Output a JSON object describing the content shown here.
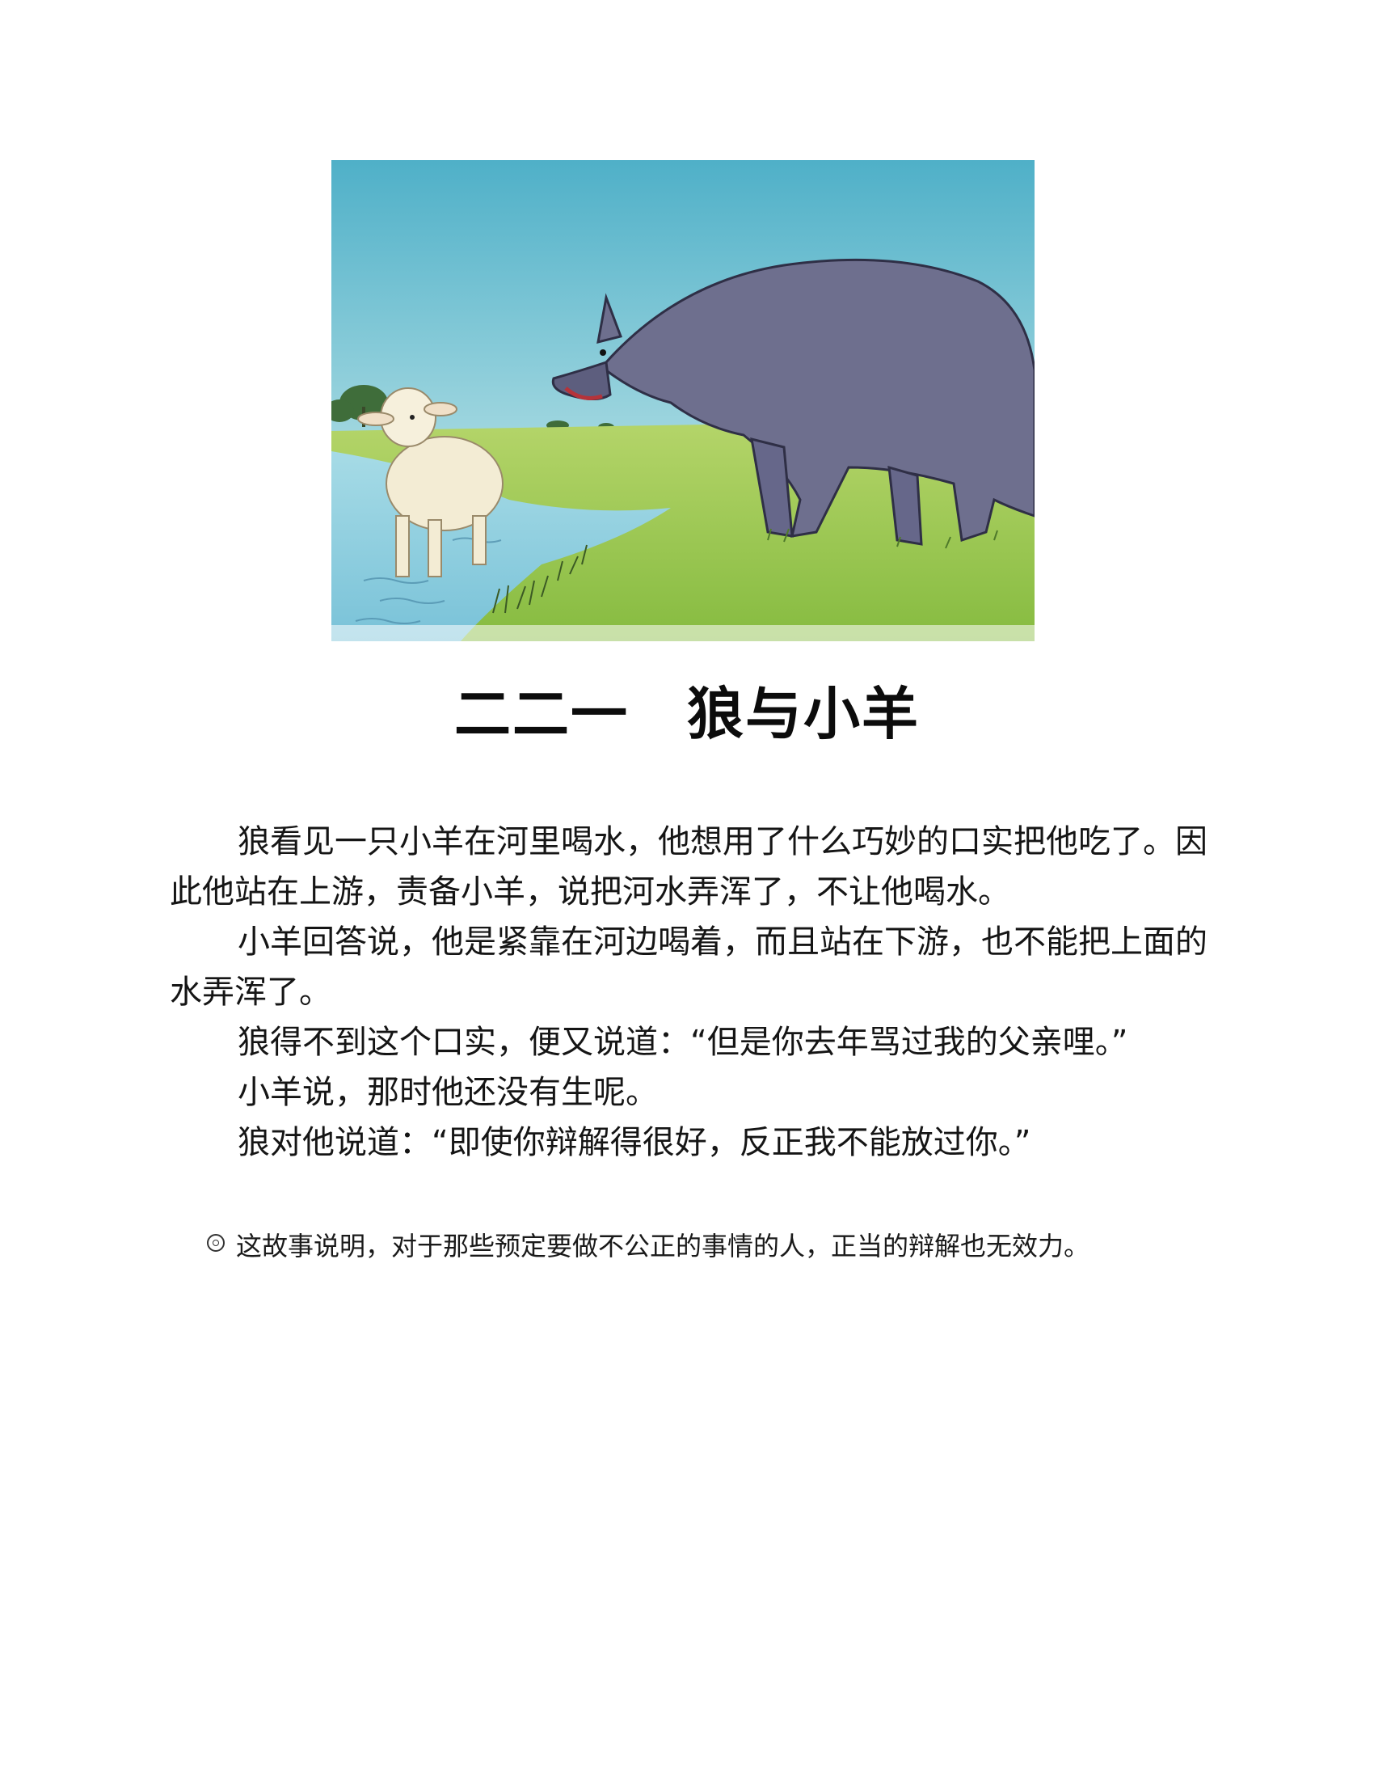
{
  "title": "二二一　狼与小羊",
  "paragraphs": [
    "狼看见一只小羊在河里喝水，他想用了什么巧妙的口实把他吃了。因此他站在上游，责备小羊，说把河水弄浑了，不让他喝水。",
    "小羊回答说，他是紧靠在河边喝着，而且站在下游，也不能把上面的水弄浑了。",
    "狼得不到这个口实，便又说道：“但是你去年骂过我的父亲哩。”",
    "小羊说，那时他还没有生呢。",
    "狼对他说道：“即使你辩解得很好，反正我不能放过你。”"
  ],
  "moral": {
    "icon": "double-circle-bullet-icon",
    "text": "这故事说明，对于那些预定要做不公正的事情的人，正当的辩解也无效力。"
  },
  "illustration": {
    "colors": {
      "sky": "#63bcd0",
      "grass": "#8fc24a",
      "water": "#8ccfe0",
      "wolf": "#6e6f8e",
      "lamb": "#f3ecd4"
    }
  }
}
